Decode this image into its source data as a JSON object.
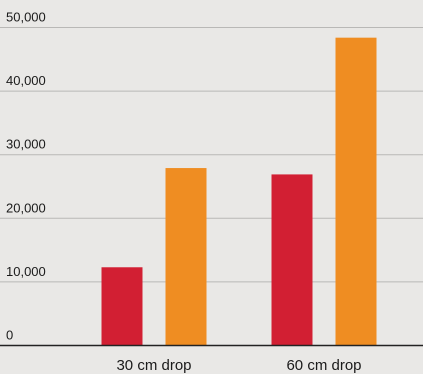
{
  "chart_data": {
    "type": "bar",
    "title": "",
    "xlabel": "",
    "ylabel": "",
    "categories": [
      "30 cm drop",
      "60 cm drop"
    ],
    "series": [
      {
        "color": "#d21f33",
        "values": [
          12300,
          26900
        ]
      },
      {
        "color": "#ef8d22",
        "values": [
          27900,
          48400
        ]
      }
    ],
    "ylim": [
      0,
      50000
    ],
    "yticks": [
      0,
      10000,
      20000,
      30000,
      40000,
      50000
    ],
    "ytick_labels": [
      "0",
      "10,000",
      "20,000",
      "30,000",
      "40,000",
      "50,000"
    ],
    "grid": true,
    "legend": "none"
  },
  "colors": {
    "background": "#e9e8e6",
    "gridline": "#b9b8b6",
    "axis": "#222222"
  }
}
